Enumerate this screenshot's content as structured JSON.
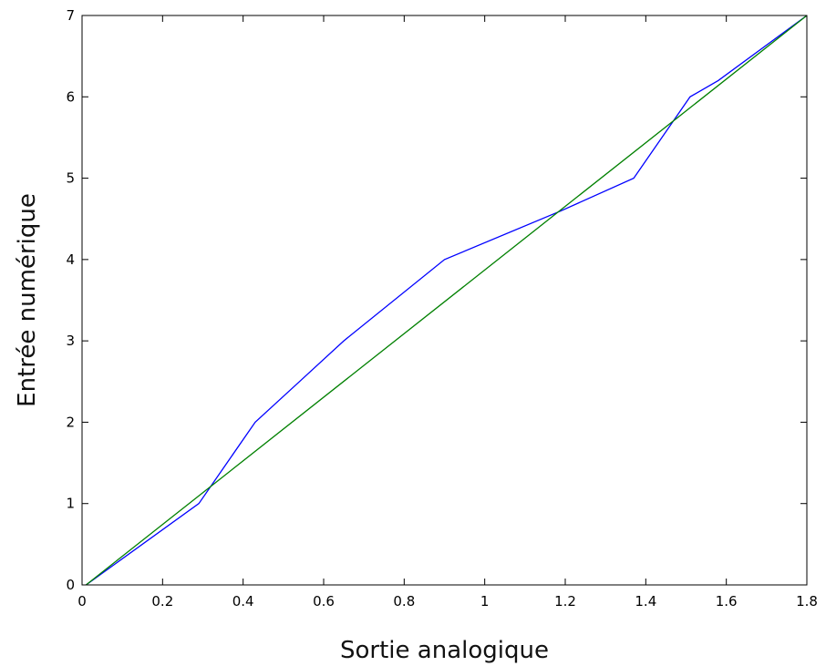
{
  "chart_data": {
    "type": "line",
    "title": "",
    "xlabel": "Sortie analogique",
    "ylabel": "Entrée numérique",
    "xlim": [
      0,
      1.8
    ],
    "ylim": [
      0,
      7
    ],
    "xticks": [
      0,
      0.2,
      0.4,
      0.6,
      0.8,
      1,
      1.2,
      1.4,
      1.6,
      1.8
    ],
    "xtick_labels": [
      "0",
      "0.2",
      "0.4",
      "0.6",
      "0.8",
      "1",
      "1.2",
      "1.4",
      "1.6",
      "1.8"
    ],
    "yticks": [
      0,
      1,
      2,
      3,
      4,
      5,
      6,
      7
    ],
    "ytick_labels": [
      "0",
      "1",
      "2",
      "3",
      "4",
      "5",
      "6",
      "7"
    ],
    "grid": false,
    "legend": "none",
    "series": [
      {
        "color": "#0000ff",
        "x": [
          0.01,
          0.29,
          0.43,
          0.54,
          0.65,
          0.9,
          1.19,
          1.37,
          1.51,
          1.58,
          1.8
        ],
        "y": [
          0,
          1,
          2,
          2.5,
          3,
          4,
          4.6,
          5,
          6,
          6.2,
          7
        ]
      },
      {
        "color": "#008000",
        "x": [
          0.01,
          1.8
        ],
        "y": [
          0,
          7
        ]
      }
    ]
  }
}
